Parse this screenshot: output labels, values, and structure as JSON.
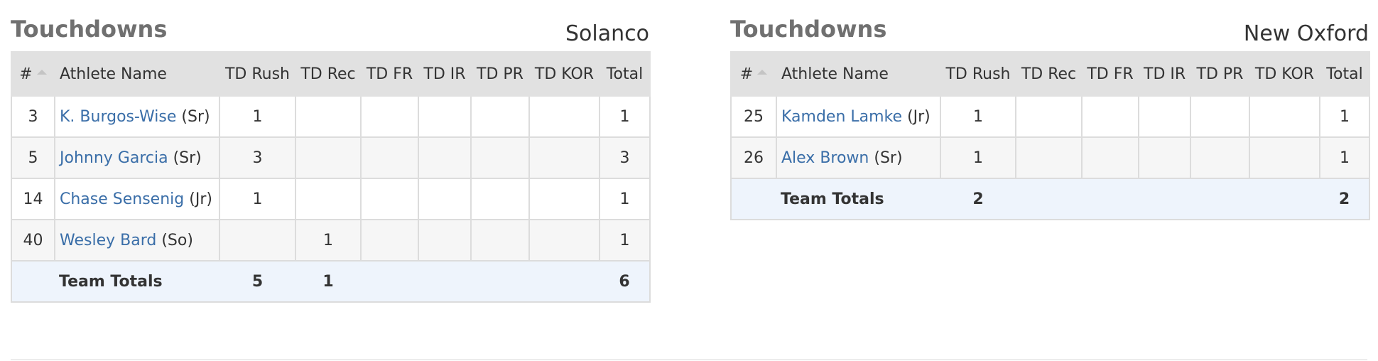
{
  "columns": [
    "#",
    "Athlete Name",
    "TD Rush",
    "TD Rec",
    "TD FR",
    "TD IR",
    "TD PR",
    "TD KOR",
    "Total"
  ],
  "left": {
    "title": "Touchdowns",
    "team": "Solanco",
    "rows": [
      {
        "num": "3",
        "name": "K. Burgos-Wise",
        "cls": "(Sr)",
        "rush": "1",
        "rec": "",
        "fr": "",
        "ir": "",
        "pr": "",
        "kor": "",
        "total": "1"
      },
      {
        "num": "5",
        "name": "Johnny Garcia",
        "cls": "(Sr)",
        "rush": "3",
        "rec": "",
        "fr": "",
        "ir": "",
        "pr": "",
        "kor": "",
        "total": "3"
      },
      {
        "num": "14",
        "name": "Chase Sensenig",
        "cls": "(Jr)",
        "rush": "1",
        "rec": "",
        "fr": "",
        "ir": "",
        "pr": "",
        "kor": "",
        "total": "1"
      },
      {
        "num": "40",
        "name": "Wesley Bard",
        "cls": "(So)",
        "rush": "",
        "rec": "1",
        "fr": "",
        "ir": "",
        "pr": "",
        "kor": "",
        "total": "1"
      }
    ],
    "totals": {
      "label": "Team Totals",
      "rush": "5",
      "rec": "1",
      "fr": "",
      "ir": "",
      "pr": "",
      "kor": "",
      "total": "6"
    }
  },
  "right": {
    "title": "Touchdowns",
    "team": "New Oxford",
    "rows": [
      {
        "num": "25",
        "name": "Kamden Lamke",
        "cls": "(Jr)",
        "rush": "1",
        "rec": "",
        "fr": "",
        "ir": "",
        "pr": "",
        "kor": "",
        "total": "1"
      },
      {
        "num": "26",
        "name": "Alex Brown",
        "cls": "(Sr)",
        "rush": "1",
        "rec": "",
        "fr": "",
        "ir": "",
        "pr": "",
        "kor": "",
        "total": "1"
      }
    ],
    "totals": {
      "label": "Team Totals",
      "rush": "2",
      "rec": "",
      "fr": "",
      "ir": "",
      "pr": "",
      "kor": "",
      "total": "2"
    }
  },
  "colors": {
    "header_bg": "#e1e1e1",
    "link": "#3a6ea8",
    "totals_bg": "#eef4fc",
    "title": "#707070"
  },
  "icons": {
    "sort": "sort-caret-up-icon"
  }
}
